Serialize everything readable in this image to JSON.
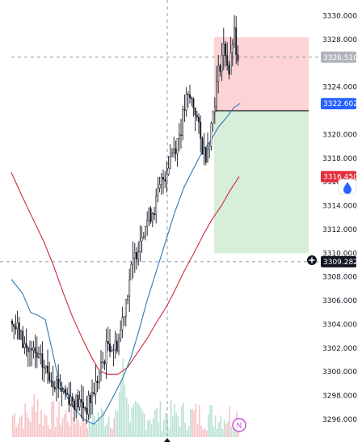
{
  "chart_data": {
    "type": "candlestick",
    "ylim": [
      3295.2,
      3331.4
    ],
    "y_ticks": [
      3330,
      3328,
      3324,
      3320,
      3318,
      3316,
      3314,
      3312,
      3310,
      3308,
      3306,
      3304,
      3302,
      3300,
      3298,
      3296
    ],
    "y_tick_labels": [
      "3330.000",
      "3328.000",
      "3324.000",
      "3320.000",
      "3318.000",
      "3316.000",
      "3314.000",
      "3312.000",
      "3310.000",
      "3308.000",
      "3306.000",
      "3304.000",
      "3302.000",
      "3300.000",
      "3298.000",
      "3296.000"
    ],
    "price_tags": [
      {
        "label": "3326.510",
        "value": 3326.51,
        "style": "grey"
      },
      {
        "label": "3322.602",
        "value": 3322.602,
        "style": "blue"
      },
      {
        "label": "3316.450",
        "value": 3316.45,
        "style": "red"
      },
      {
        "label": "3309.282",
        "value": 3309.282,
        "style": "dark"
      }
    ],
    "crosshair_price": 3326.51,
    "crosshair_lower_price": 3309.282,
    "position": {
      "entry": 3322.0,
      "target": 3328.2,
      "stop": 3310.0
    },
    "colors": {
      "candle": "#131722",
      "ma_fast": "#2e7ab8",
      "ma_slow": "#d1283a",
      "volume_up": "#b9e2d3",
      "volume_down": "#f6c2c6",
      "profit_zone": "#d7eed8",
      "loss_zone": "#fcd4d6",
      "tag_blue": "#2962ff",
      "tag_red": "#e22d3a",
      "tag_dark": "#131722",
      "tag_grey": "#b2b5be"
    }
  },
  "overlay": {
    "news_badge": "N"
  }
}
